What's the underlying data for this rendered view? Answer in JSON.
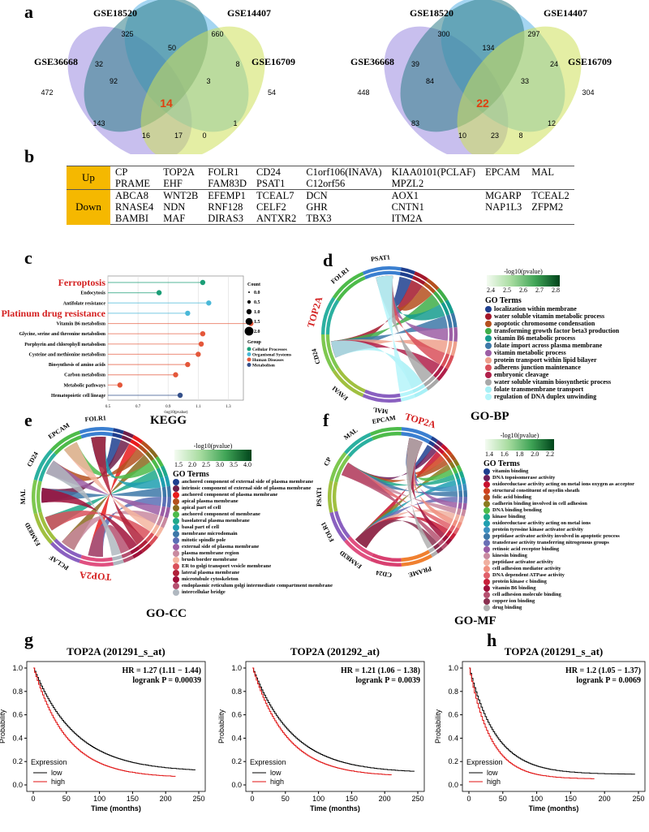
{
  "panels": {
    "a": "a",
    "b": "b",
    "c": "c",
    "d": "d",
    "e": "e",
    "f": "f",
    "g": "g",
    "h": "h"
  },
  "venn": [
    {
      "sets": [
        "GSE18520",
        "GSE14407",
        "GSE36668",
        "GSE16709"
      ],
      "counts": {
        "a": "325",
        "b": "660",
        "c": "472",
        "d": "54",
        "ab": "50",
        "ac": "32",
        "bd": "8",
        "cd": "17",
        "ac_b": "92",
        "bd_a": "3",
        "acd": "143",
        "bcd": "1",
        "ad": "16",
        "bc": "0",
        "all": "14"
      }
    },
    {
      "sets": [
        "GSE18520",
        "GSE14407",
        "GSE36668",
        "GSE16709"
      ],
      "counts": {
        "a": "300",
        "b": "297",
        "c": "448",
        "d": "304",
        "ab": "134",
        "ac": "39",
        "bd": "24",
        "cd": "23",
        "ac_b": "84",
        "bd_a": "33",
        "acd": "83",
        "bcd": "12",
        "ad": "10",
        "bc": "8",
        "all": "22"
      }
    }
  ],
  "gene_table": {
    "up_label": "Up",
    "down_label": "Down",
    "up": [
      [
        "CP",
        "TOP2A",
        "FOLR1",
        "CD24",
        "C1orf106(INAVA)",
        "KIAA0101(PCLAF)",
        "EPCAM",
        "MAL"
      ],
      [
        "PRAME",
        "EHF",
        "FAM83D",
        "PSAT1",
        "C12orf56",
        "MPZL2",
        "",
        ""
      ]
    ],
    "down": [
      [
        "ABCA8",
        "WNT2B",
        "EFEMP1",
        "TCEAL7",
        "DCN",
        "AOX1",
        "MGARP",
        "TCEAL2"
      ],
      [
        "RNASE4",
        "NDN",
        "RNF128",
        "CELF2",
        "GHR",
        "CNTN1",
        "NAP1L3",
        "ZFPM2"
      ],
      [
        "BAMBI",
        "MAF",
        "DIRAS3",
        "ANTXR2",
        "TBX3",
        "ITM2A",
        "",
        ""
      ]
    ]
  },
  "chart_data": {
    "type": "lollipop",
    "xlabel": "-log10(pvalue)",
    "xticks": [
      "0.5",
      "0.7",
      "0.9",
      "1.1",
      "1.3"
    ],
    "xlim": [
      0.5,
      1.4
    ],
    "categories": [
      "Ferroptosis",
      "Endocytosis",
      "Antifolate resistance",
      "Platinum drug resistance",
      "Vitamin B6 metabolism",
      "Glycine, serine and threonine metabolism",
      "Porphyrin and chlorophyll metabolism",
      "Cysteine and methionine metabolism",
      "Biosynthesis of amino acids",
      "Carbon metabolism",
      "Metabolic pathways",
      "Hematopoietic cell lineage"
    ],
    "values": [
      1.13,
      0.84,
      1.17,
      1.03,
      1.45,
      1.13,
      1.12,
      1.1,
      1.03,
      0.95,
      0.58,
      0.98
    ],
    "groups": [
      "Cellular Processes",
      "Cellular Processes",
      "Organismal Systems",
      "Organismal Systems",
      "Human Diseases",
      "Human Diseases",
      "Human Diseases",
      "Human Diseases",
      "Human Diseases",
      "Human Diseases",
      "Human Diseases",
      "Metabolism"
    ],
    "highlight": [
      "Ferroptosis",
      "Platinum drug resistance"
    ],
    "count_legend": {
      "title": "Count",
      "values": [
        "0.0",
        "0.5",
        "1.0",
        "1.5",
        "2.0"
      ]
    },
    "group_legend": {
      "title": "Group",
      "items": [
        {
          "name": "Cellular Processes",
          "color": "#1b9e77"
        },
        {
          "name": "Organismal Systems",
          "color": "#4ab8d8"
        },
        {
          "name": "Human Diseases",
          "color": "#e4573a"
        },
        {
          "name": "Metabolism",
          "color": "#34508a"
        }
      ]
    }
  },
  "chords": {
    "d": {
      "title": "GO-BP",
      "genes": [
        "PSAT1",
        "FOLR1",
        "TOP2A",
        "CD24",
        "FAVAI",
        "MAL"
      ],
      "highlight": "TOP2A",
      "cb_title": "-log10(pvalue)",
      "cb_ticks": [
        "2.4",
        "2.5",
        "2.6",
        "2.7",
        "2.8"
      ],
      "legend_title": "GO Terms",
      "terms": [
        {
          "name": "localization within membrane",
          "color": "#1f3f8f"
        },
        {
          "name": "water soluble vitamin metabolic process",
          "color": "#a3172b"
        },
        {
          "name": "apoptotic chromosome condensation",
          "color": "#b5501e"
        },
        {
          "name": "transforming growth factor beta3 production",
          "color": "#3fae49"
        },
        {
          "name": "vitamin B6 metabolic process",
          "color": "#169c8e"
        },
        {
          "name": "folate import across plasma membrane",
          "color": "#3d78a8"
        },
        {
          "name": "vitamin metabolic process",
          "color": "#9c5ea5"
        },
        {
          "name": "protein transport within lipid bilayer",
          "color": "#eea08c"
        },
        {
          "name": "adherens junction maintenance",
          "color": "#d9505a"
        },
        {
          "name": "embryonic cleavage",
          "color": "#b0204a"
        },
        {
          "name": "water soluble vitamin biosynthetic process",
          "color": "#a8a8a8"
        },
        {
          "name": "folate transmembrane transport",
          "color": "#a8f0f6"
        },
        {
          "name": "regulation of DNA duplex unwinding",
          "color": "#b5f5fa"
        }
      ]
    },
    "e": {
      "title": "KEGG",
      "genes": [
        "FOLR1",
        "EPCAM",
        "CD24",
        "MAL",
        "FAM83D",
        "PCLAF",
        "TOP2A"
      ],
      "highlight": "TOP2A",
      "cb_title": "-log10(pvalue)",
      "cb_ticks": [
        "1.5",
        "2.0",
        "2.5",
        "3.0",
        "3.5",
        "4.0"
      ],
      "legend_title": "GO Terms",
      "caption": "GO-CC",
      "terms": [
        {
          "name": "anchored component of external side of plasma membrane",
          "color": "#1f3f8f"
        },
        {
          "name": "intrinsic component of external side of plasma membrane",
          "color": "#6e1f4a"
        },
        {
          "name": "anchored component of plasma membrane",
          "color": "#e81c1c"
        },
        {
          "name": "apical plasma membrane",
          "color": "#b5501e"
        },
        {
          "name": "apical part of cell",
          "color": "#8a6a1e"
        },
        {
          "name": "anchored component of membrane",
          "color": "#4dbb4a"
        },
        {
          "name": "basolateral plasma membrane",
          "color": "#1fa98a"
        },
        {
          "name": "basal part of cell",
          "color": "#1f9fb0"
        },
        {
          "name": "membrane microdomain",
          "color": "#3d78a8"
        },
        {
          "name": "mitotic spindle pole",
          "color": "#5a6fb5"
        },
        {
          "name": "external side of plasma membrane",
          "color": "#9c5ea5"
        },
        {
          "name": "plasma membrane region",
          "color": "#c98aa0"
        },
        {
          "name": "brush border membrane",
          "color": "#f5b5a0"
        },
        {
          "name": "ER to golgi transport vesicle membrane",
          "color": "#d9505a"
        },
        {
          "name": "lateral plasma membrane",
          "color": "#b0203a"
        },
        {
          "name": "microtubule cytoskeleton",
          "color": "#a0103a"
        },
        {
          "name": "endoplasmic reticulum golgi intermediate compartment membrane",
          "color": "#b55070"
        },
        {
          "name": "intercellular bridge",
          "color": "#b0b8c0"
        }
      ]
    },
    "f": {
      "title": "GO-BP",
      "genes": [
        "TOP2A",
        "EPCAM",
        "MAL",
        "CP",
        "PSAT1",
        "FOLR1",
        "FAM83D",
        "CD24",
        "PRAME"
      ],
      "highlight": "TOP2A",
      "cb_title": "-log10(pvalue)",
      "cb_ticks": [
        "1.4",
        "1.6",
        "1.8",
        "2.0",
        "2.2"
      ],
      "legend_title": "GO Terms",
      "caption": "GO-MF",
      "terms": [
        {
          "name": "vitamin binding",
          "color": "#1f3f8f"
        },
        {
          "name": "DNA topoisomerase activity",
          "color": "#6e1f5a"
        },
        {
          "name": "oxidoreductase activity acting on metal ions oxygen as acceptor",
          "color": "#c8102e"
        },
        {
          "name": "structural constituent of myelin sheath",
          "color": "#d0401e"
        },
        {
          "name": "folic acid binding",
          "color": "#b5501e"
        },
        {
          "name": "cadherin binding involved in cell adhesion",
          "color": "#8a7a1e"
        },
        {
          "name": "DNA binding bending",
          "color": "#4dbb4a"
        },
        {
          "name": "kinase binding",
          "color": "#1fa98a"
        },
        {
          "name": "oxidoreductase activity acting on metal ions",
          "color": "#1f9fb0"
        },
        {
          "name": "protein tyrosine kinase activator activity",
          "color": "#3d90c0"
        },
        {
          "name": "peptidase activator activity involved in apoptotic process",
          "color": "#3d78a8"
        },
        {
          "name": "transferase activity transferring nitrogenous groups",
          "color": "#6a6fb5"
        },
        {
          "name": "retinoic acid receptor binding",
          "color": "#9c5ea5"
        },
        {
          "name": "kinesin binding",
          "color": "#c98aa0"
        },
        {
          "name": "peptidase activator activity",
          "color": "#f0b0a0"
        },
        {
          "name": "cell adhesion mediator activity",
          "color": "#f09080"
        },
        {
          "name": "DNA dependent ATPase activity",
          "color": "#e0606a"
        },
        {
          "name": "protein kinase c binding",
          "color": "#c8203a"
        },
        {
          "name": "vitamin B6 binding",
          "color": "#a0103a"
        },
        {
          "name": "cell adhesion molecule binding",
          "color": "#b55070"
        },
        {
          "name": "copper ion binding",
          "color": "#8a3050"
        },
        {
          "name": "drug binding",
          "color": "#b0b0b0"
        }
      ]
    }
  },
  "km": [
    {
      "title": "TOP2A (201291_s_at)",
      "hr": "HR = 1.27 (1.11 − 1.44)",
      "logrank": "logrank P = 0.00039",
      "xlabel": "Time (months)",
      "ylabel": "Probability",
      "xticks": [
        "0",
        "50",
        "100",
        "150",
        "200",
        "250"
      ],
      "yticks": [
        "0.0",
        "0.2",
        "0.4",
        "0.6",
        "0.8",
        "1.0"
      ],
      "legend_title": "Expression",
      "low": "low",
      "high": "high",
      "median_low": 48,
      "median_high": 38,
      "tail_low": 0.11,
      "tail_high": 0.06,
      "max_low": 245,
      "max_high": 215
    },
    {
      "title": "TOP2A (201292_at)",
      "hr": "HR = 1.21 (1.06 − 1.38)",
      "logrank": "logrank P = 0.0039",
      "xlabel": "Time (months)",
      "ylabel": "Probability",
      "xticks": [
        "0",
        "50",
        "100",
        "150",
        "200",
        "250"
      ],
      "yticks": [
        "0.0",
        "0.2",
        "0.4",
        "0.6",
        "0.8",
        "1.0"
      ],
      "legend_title": "Expression",
      "low": "low",
      "high": "high",
      "median_low": 46,
      "median_high": 39,
      "tail_low": 0.1,
      "tail_high": 0.07,
      "max_low": 245,
      "max_high": 210
    },
    {
      "title": "TOP2A (201291_s_at)",
      "hr": "HR = 1.2 (1.05 − 1.37)",
      "logrank": "logrank P = 0.0069",
      "xlabel": "Time (months)",
      "ylabel": "Probability",
      "xticks": [
        "0",
        "50",
        "100",
        "150",
        "200",
        "250"
      ],
      "yticks": [
        "0.0",
        "0.2",
        "0.4",
        "0.6",
        "0.8",
        "1.0"
      ],
      "legend_title": "Expression",
      "low": "low",
      "high": "high",
      "median_low": 30,
      "median_high": 24,
      "tail_low": 0.09,
      "tail_high": 0.05,
      "max_low": 245,
      "max_high": 185
    }
  ],
  "colors": {
    "low": "#000000",
    "high": "#e01010",
    "highlight": "#d42020",
    "table_header": "#f5b800"
  }
}
